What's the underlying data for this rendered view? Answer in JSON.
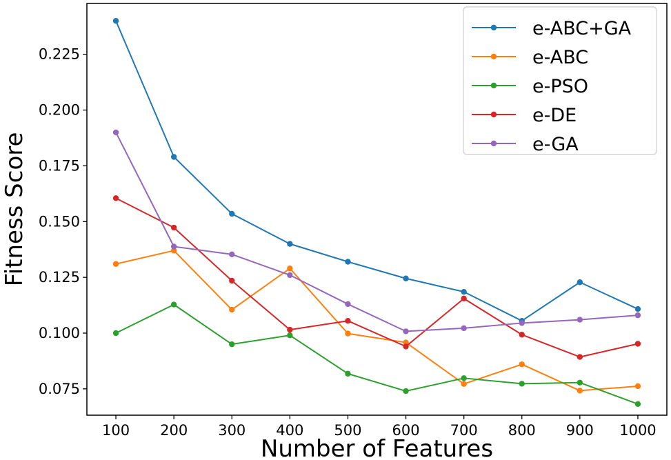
{
  "chart_data": {
    "type": "line",
    "title": "",
    "xlabel": "Number of Features",
    "ylabel": "Fitness Score",
    "x": [
      100,
      200,
      300,
      400,
      500,
      600,
      700,
      800,
      900,
      1000
    ],
    "x_ticks": [
      "100",
      "200",
      "300",
      "400",
      "500",
      "600",
      "700",
      "800",
      "900",
      "1000"
    ],
    "y_ticks": [
      "0.075",
      "0.100",
      "0.125",
      "0.150",
      "0.175",
      "0.200",
      "0.225"
    ],
    "y_tick_values": [
      0.075,
      0.1,
      0.125,
      0.15,
      0.175,
      0.2,
      0.225
    ],
    "xlim": [
      50,
      1050
    ],
    "ylim": [
      0.0632,
      0.2478
    ],
    "grid": false,
    "legend_position": "top-right",
    "series": [
      {
        "name": "e-ABC+GA",
        "color": "#1f77b4",
        "marker": "circle",
        "values": [
          0.24,
          0.179,
          0.1535,
          0.14,
          0.132,
          0.1245,
          0.1185,
          0.1055,
          0.1228,
          0.1108
        ]
      },
      {
        "name": "e-ABC",
        "color": "#ff7f0e",
        "marker": "circle",
        "values": [
          0.131,
          0.137,
          0.1105,
          0.129,
          0.0998,
          0.0958,
          0.0772,
          0.086,
          0.0742,
          0.0762
        ]
      },
      {
        "name": "e-PSO",
        "color": "#2ca02c",
        "marker": "circle",
        "values": [
          0.1,
          0.1128,
          0.095,
          0.099,
          0.0818,
          0.074,
          0.0798,
          0.0773,
          0.0778,
          0.0682
        ]
      },
      {
        "name": "e-DE",
        "color": "#d62728",
        "marker": "circle",
        "values": [
          0.1605,
          0.1473,
          0.1235,
          0.1015,
          0.1055,
          0.094,
          0.1155,
          0.0993,
          0.0893,
          0.0952
        ]
      },
      {
        "name": "e-GA",
        "color": "#9467bd",
        "marker": "circle",
        "values": [
          0.19,
          0.1388,
          0.1353,
          0.126,
          0.113,
          0.1008,
          0.1022,
          0.1045,
          0.106,
          0.108
        ]
      }
    ]
  }
}
